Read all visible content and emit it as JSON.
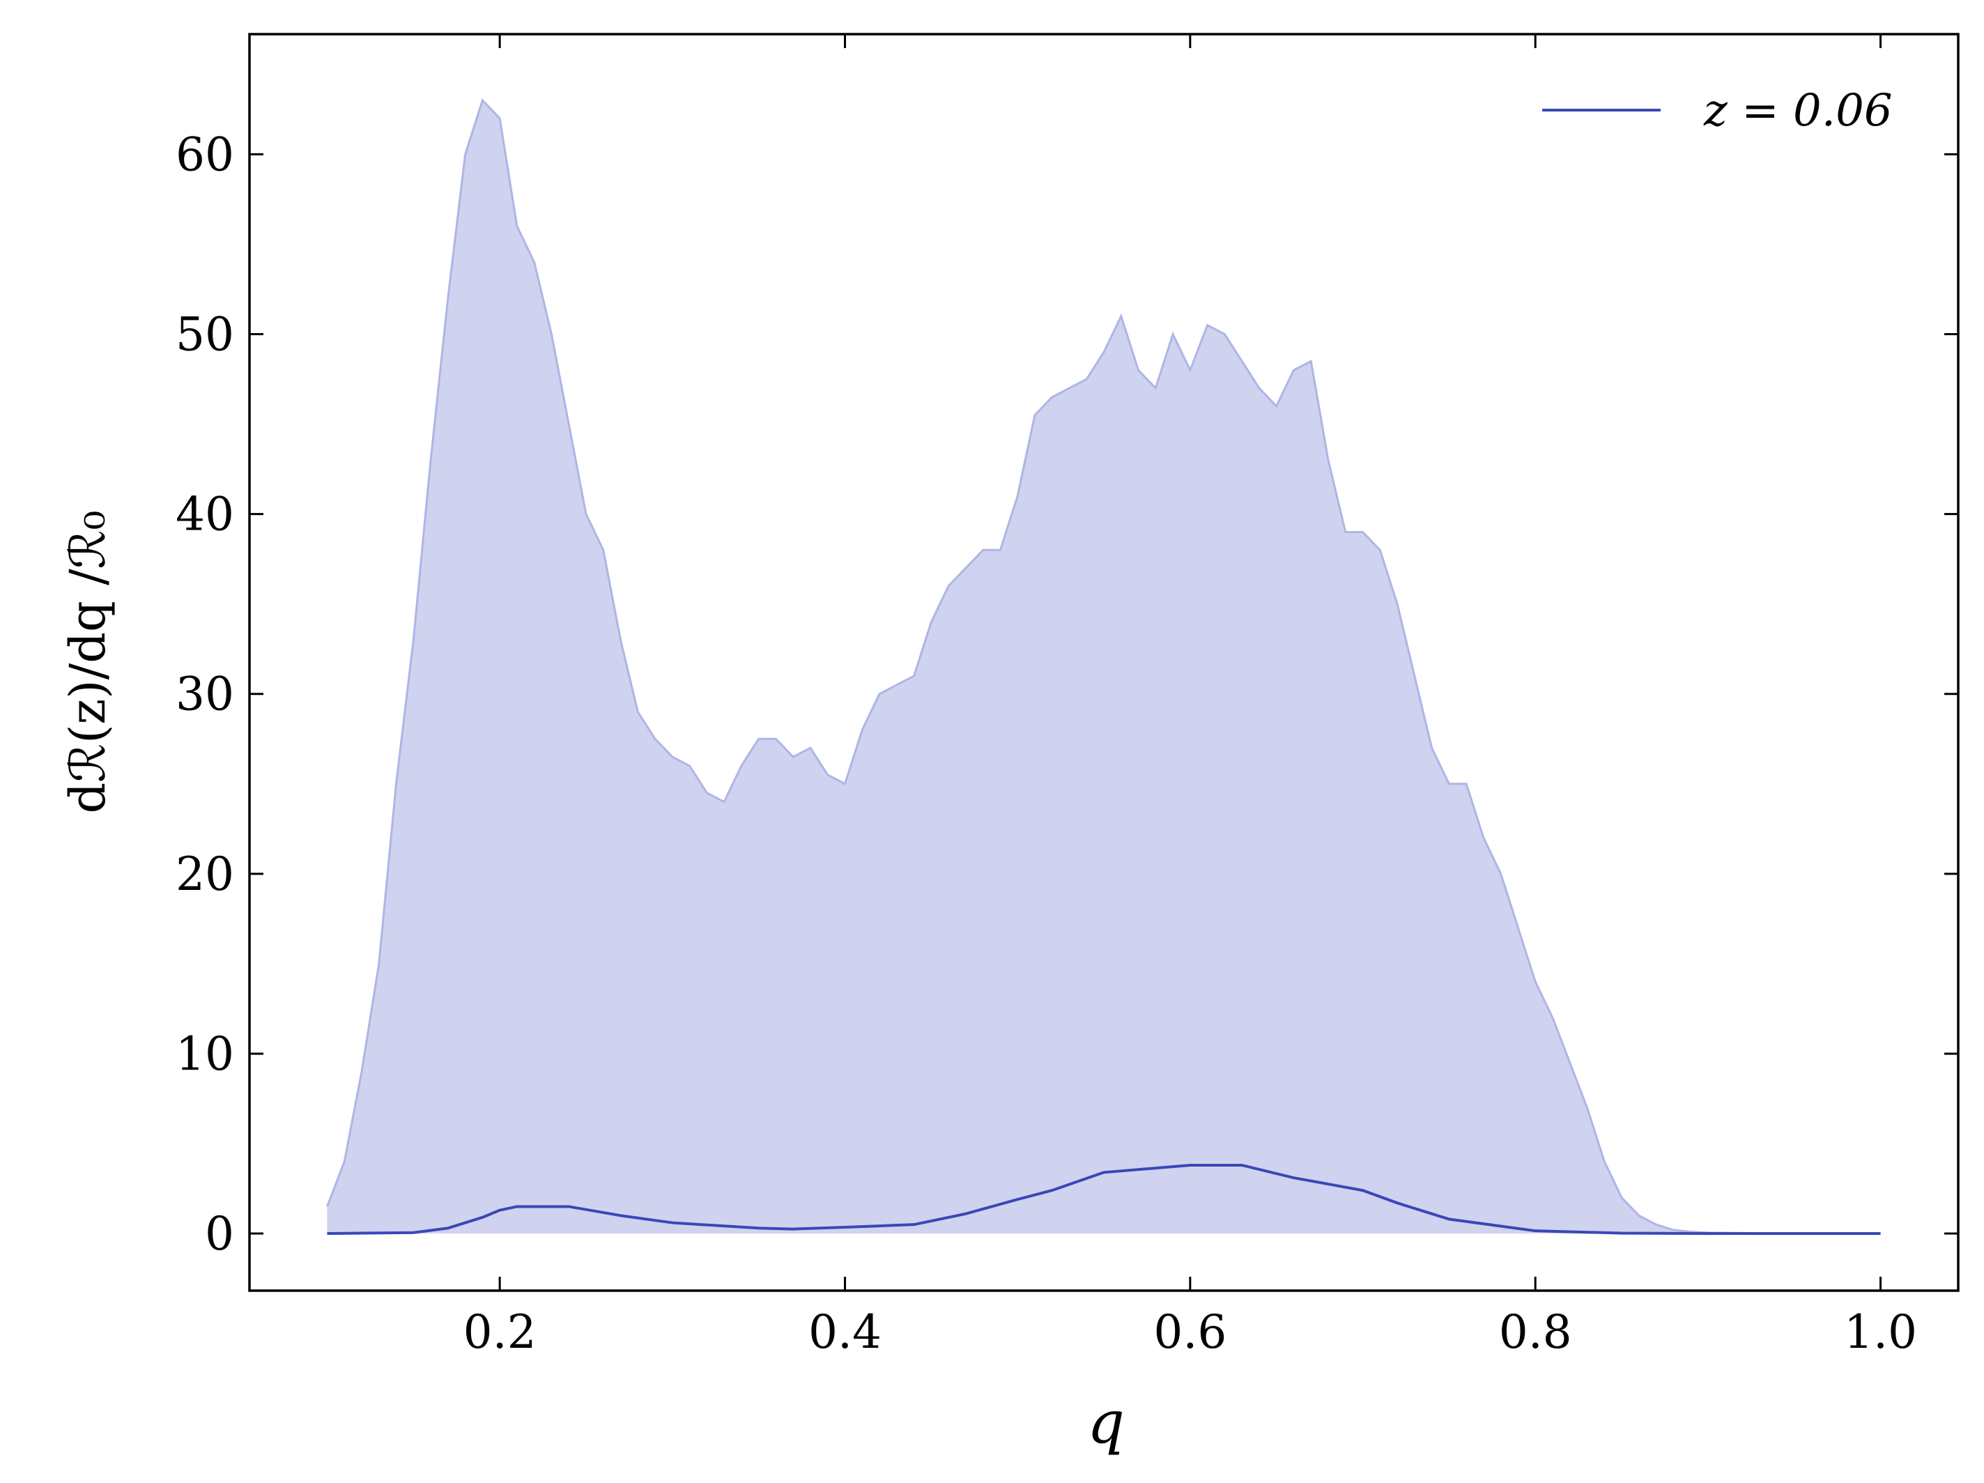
{
  "chart_data": {
    "type": "line",
    "x_label": "q",
    "y_label": "dℛ(z)/dq /ℛ₀",
    "xlim": [
      0.055,
      1.045
    ],
    "ylim": [
      -3.175,
      66.68
    ],
    "xticks": [
      0.2,
      0.4,
      0.6,
      0.8,
      {
        "value": 1,
        "label": "1.0"
      }
    ],
    "yticks": [
      0,
      10,
      20,
      30,
      40,
      50,
      60
    ],
    "legend": "upper right",
    "band": {
      "color": "#cfd3ef",
      "edge_color": "#aeb5e6",
      "x": [
        0.1,
        0.11,
        0.12,
        0.13,
        0.14,
        0.15,
        0.16,
        0.17,
        0.18,
        0.19,
        0.2,
        0.21,
        0.22,
        0.23,
        0.24,
        0.25,
        0.26,
        0.27,
        0.28,
        0.29,
        0.3,
        0.31,
        0.32,
        0.33,
        0.34,
        0.35,
        0.36,
        0.37,
        0.38,
        0.39,
        0.4,
        0.41,
        0.42,
        0.43,
        0.44,
        0.45,
        0.46,
        0.47,
        0.48,
        0.49,
        0.5,
        0.51,
        0.52,
        0.53,
        0.54,
        0.55,
        0.56,
        0.57,
        0.58,
        0.59,
        0.6,
        0.61,
        0.62,
        0.63,
        0.64,
        0.65,
        0.66,
        0.67,
        0.68,
        0.69,
        0.7,
        0.71,
        0.72,
        0.73,
        0.74,
        0.75,
        0.76,
        0.77,
        0.78,
        0.79,
        0.8,
        0.81,
        0.82,
        0.83,
        0.84,
        0.85,
        0.86,
        0.87,
        0.88,
        0.89,
        0.9,
        0.95,
        1.0
      ],
      "upper": [
        1.5,
        4,
        9,
        15,
        25,
        33,
        43,
        52,
        60,
        63,
        62,
        56,
        54,
        50,
        45,
        40,
        38,
        33,
        29,
        27.5,
        26.5,
        26,
        24.5,
        24,
        26,
        27.5,
        27.5,
        26.5,
        27,
        25.5,
        25,
        28,
        30,
        30.5,
        31,
        34,
        36,
        37,
        38,
        38,
        41,
        45.5,
        46.5,
        47,
        47.5,
        49,
        51,
        48,
        47,
        50,
        48,
        50.5,
        50,
        48.5,
        47,
        46,
        48,
        48.5,
        43,
        39,
        39,
        38,
        35,
        31,
        27,
        25,
        25,
        22,
        20,
        17,
        14,
        12,
        9.5,
        7,
        4,
        2,
        1,
        0.5,
        0.2,
        0.1,
        0.05,
        0,
        0
      ]
    },
    "series": [
      {
        "name": "z = 0.06",
        "color": "#3a47b8",
        "x": [
          0.1,
          0.15,
          0.17,
          0.19,
          0.2,
          0.21,
          0.24,
          0.27,
          0.3,
          0.35,
          0.37,
          0.4,
          0.44,
          0.47,
          0.5,
          0.52,
          0.55,
          0.6,
          0.63,
          0.66,
          0.7,
          0.72,
          0.75,
          0.8,
          0.85,
          0.9,
          1.0
        ],
        "values": [
          0,
          0.05,
          0.3,
          0.9,
          1.3,
          1.5,
          1.5,
          1.0,
          0.6,
          0.3,
          0.25,
          0.35,
          0.5,
          1.1,
          1.9,
          2.4,
          3.4,
          3.8,
          3.8,
          3.1,
          2.4,
          1.7,
          0.8,
          0.15,
          0.02,
          0,
          0
        ]
      }
    ]
  }
}
